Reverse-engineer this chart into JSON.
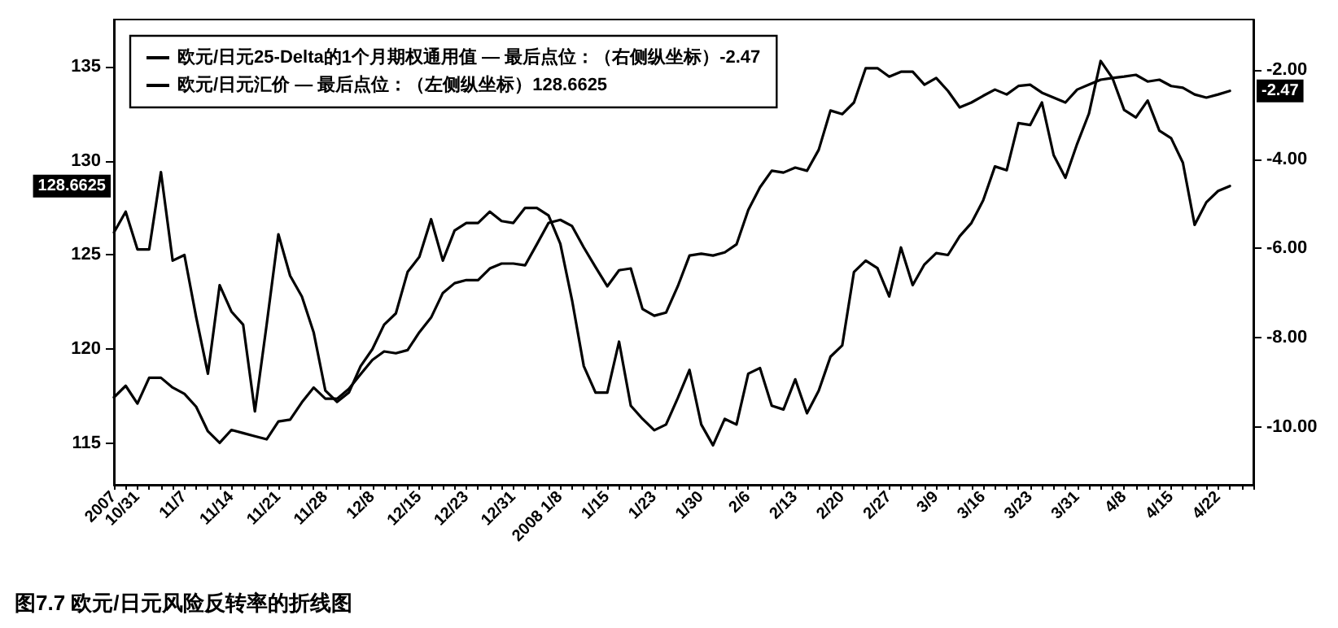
{
  "chart_data": {
    "type": "line",
    "title": "图7.7 欧元/日元风险反转率的折线图",
    "categories": [
      "2007",
      null,
      "10/31",
      null,
      null,
      null,
      "11/7",
      null,
      null,
      null,
      "11/14",
      null,
      null,
      null,
      "11/21",
      null,
      null,
      null,
      "11/28",
      null,
      null,
      null,
      "12/8",
      null,
      null,
      null,
      "12/15",
      null,
      null,
      null,
      "12/23",
      null,
      null,
      null,
      "12/31",
      null,
      null,
      null,
      "2008 1/8",
      null,
      null,
      null,
      "1/15",
      null,
      null,
      null,
      "1/23",
      null,
      null,
      null,
      "1/30",
      null,
      null,
      null,
      "2/6",
      null,
      null,
      null,
      "2/13",
      null,
      null,
      null,
      "2/20",
      null,
      null,
      null,
      "2/27",
      null,
      null,
      null,
      "3/9",
      null,
      null,
      null,
      "3/16",
      null,
      null,
      null,
      "3/23",
      null,
      null,
      null,
      "3/31",
      null,
      null,
      null,
      "4/8",
      null,
      null,
      null,
      "4/15",
      null,
      null,
      null,
      "4/22",
      null,
      null,
      null
    ],
    "series": [
      {
        "name": "欧元/日元25-Delta的1个月期权通用值 — 最后点位：（右侧纵坐标）-2.47",
        "color": "#000000",
        "axis": "y2",
        "values": [
          -9.34,
          -9.08,
          -9.48,
          -8.9,
          -8.9,
          -9.12,
          -9.26,
          -9.55,
          -10.1,
          -10.36,
          -10.07,
          -10.14,
          -10.21,
          -10.28,
          -9.88,
          -9.84,
          -9.45,
          -9.12,
          -9.37,
          -9.37,
          -9.15,
          -8.82,
          -8.5,
          -8.31,
          -8.35,
          -8.28,
          -7.88,
          -7.55,
          -7.0,
          -6.78,
          -6.71,
          -6.71,
          -6.45,
          -6.34,
          -6.34,
          -6.38,
          -5.91,
          -5.43,
          -5.36,
          -5.5,
          -5.98,
          -6.42,
          -6.85,
          -6.49,
          -6.45,
          -7.36,
          -7.51,
          -7.44,
          -6.85,
          -6.16,
          -6.12,
          -6.16,
          -6.09,
          -5.91,
          -5.14,
          -4.63,
          -4.26,
          -4.3,
          -4.19,
          -4.26,
          -3.79,
          -2.91,
          -2.99,
          -2.73,
          -1.96,
          -1.96,
          -2.15,
          -2.04,
          -2.04,
          -2.33,
          -2.18,
          -2.47,
          -2.84,
          -2.73,
          -2.58,
          -2.44,
          -2.55,
          -2.36,
          -2.33,
          -2.51,
          -2.62,
          -2.73,
          -2.44,
          -2.33,
          -2.22,
          -2.18,
          -2.15,
          -2.11,
          -2.26,
          -2.22,
          -2.36,
          -2.4,
          -2.55,
          -2.62,
          -2.55,
          -2.47,
          null,
          null
        ]
      },
      {
        "name": "欧元/日元汇价 — 最后点位：（左侧纵坐标）128.6625",
        "color": "#000000",
        "values": [
          126.2,
          127.3,
          125.3,
          125.3,
          129.4,
          124.7,
          125.0,
          121.7,
          118.7,
          123.4,
          122.0,
          121.3,
          116.7,
          121.3,
          126.1,
          123.9,
          122.8,
          120.9,
          117.8,
          117.2,
          117.7,
          119.1,
          120.0,
          121.3,
          121.9,
          124.1,
          124.9,
          126.9,
          124.7,
          126.3,
          126.7,
          126.7,
          127.3,
          126.8,
          126.7,
          127.5,
          127.5,
          127.1,
          125.6,
          122.6,
          119.1,
          117.7,
          117.7,
          120.4,
          117.0,
          116.3,
          115.7,
          116.0,
          117.4,
          118.9,
          116.0,
          114.9,
          116.3,
          116.0,
          118.7,
          119.0,
          117.0,
          116.8,
          118.4,
          116.6,
          117.8,
          119.6,
          120.2,
          124.1,
          124.7,
          124.3,
          122.8,
          125.4,
          123.4,
          124.5,
          125.1,
          125.0,
          126.0,
          126.7,
          127.9,
          129.7,
          129.5,
          132.0,
          131.9,
          133.1,
          130.3,
          129.1,
          130.9,
          132.5,
          135.3,
          134.4,
          132.7,
          132.3,
          133.2,
          131.6,
          131.2,
          129.9,
          126.6,
          127.8,
          128.4,
          128.6625,
          null,
          null
        ]
      }
    ],
    "ylim": [
      112.8,
      137.5
    ],
    "yticks": [
      115,
      120,
      125,
      130,
      135
    ],
    "y2lim": [
      -11.3,
      -0.87
    ],
    "y2ticks": [
      {
        "value": -10,
        "label": "-10.00"
      },
      {
        "value": -8,
        "label": "-8.00"
      },
      {
        "value": -6,
        "label": "-6.00"
      },
      {
        "value": -4,
        "label": "-4.00"
      },
      {
        "value": -2,
        "label": "-2.00"
      }
    ],
    "annotations": [
      "-2.47",
      "128.6625"
    ],
    "grid": false,
    "legend": "top left",
    "marker": "none",
    "line_style": "solid"
  }
}
